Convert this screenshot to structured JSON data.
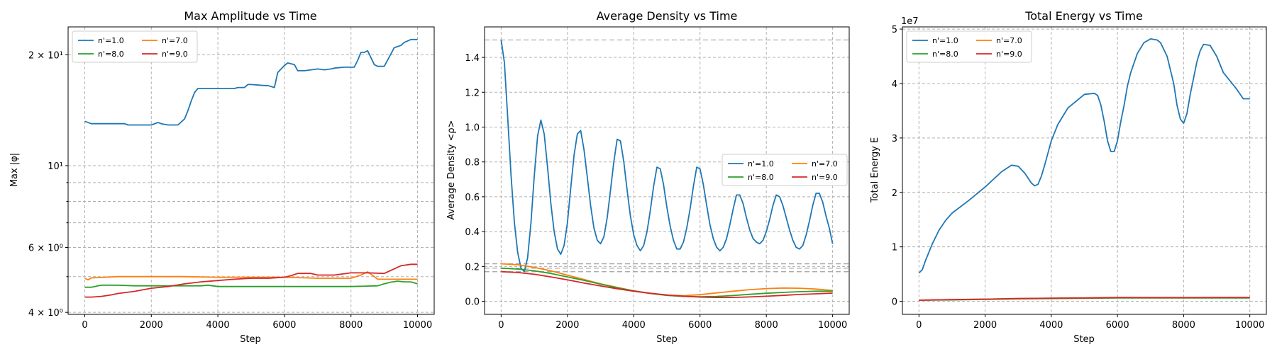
{
  "chart_data": [
    {
      "type": "line",
      "title": "Max Amplitude vs Time",
      "xlabel": "Step",
      "ylabel": "Max |φ|",
      "yscale": "log",
      "xlim": [
        -500,
        10500
      ],
      "ylim": [
        3.95,
        23.8
      ],
      "grid": true,
      "legend": "upper left",
      "legend_ncol": 2,
      "xticks": [
        {
          "v": 0,
          "label": "0"
        },
        {
          "v": 2000,
          "label": "2000"
        },
        {
          "v": 4000,
          "label": "4000"
        },
        {
          "v": 6000,
          "label": "6000"
        },
        {
          "v": 8000,
          "label": "8000"
        },
        {
          "v": 10000,
          "label": "10000"
        }
      ],
      "yticks": [
        {
          "v": 4,
          "label": "4 × 10⁰"
        },
        {
          "v": 6,
          "label": "6 × 10⁰"
        },
        {
          "v": 10,
          "label": "10¹"
        },
        {
          "v": 20,
          "label": "2 × 10¹"
        }
      ],
      "yminor": [
        5,
        7,
        8,
        9
      ],
      "series": [
        {
          "name": "n'=1.0",
          "color": "#1f77b4",
          "x": [
            0,
            200,
            500,
            1000,
            1200,
            1300,
            1500,
            2000,
            2200,
            2300,
            2500,
            2800,
            3000,
            3100,
            3200,
            3300,
            3400,
            3500,
            3600,
            3800,
            4500,
            4600,
            4800,
            4900,
            5000,
            5400,
            5500,
            5700,
            5750,
            5800,
            6000,
            6100,
            6200,
            6300,
            6400,
            6500,
            6600,
            7000,
            7200,
            7400,
            7500,
            7800,
            7900,
            8100,
            8200,
            8300,
            8400,
            8500,
            8700,
            8800,
            8900,
            9000,
            9300,
            9500,
            9600,
            9800,
            10000
          ],
          "y": [
            13.2,
            13.0,
            13.0,
            13.0,
            13.0,
            12.9,
            12.9,
            12.9,
            13.1,
            13.0,
            12.9,
            12.9,
            13.4,
            14.1,
            15.0,
            15.8,
            16.2,
            16.2,
            16.2,
            16.2,
            16.2,
            16.3,
            16.3,
            16.6,
            16.6,
            16.5,
            16.5,
            16.3,
            17.1,
            17.9,
            18.7,
            19.0,
            18.9,
            18.8,
            18.1,
            18.1,
            18.1,
            18.3,
            18.2,
            18.3,
            18.4,
            18.5,
            18.5,
            18.5,
            19.3,
            20.3,
            20.3,
            20.5,
            18.8,
            18.6,
            18.6,
            18.6,
            20.9,
            21.2,
            21.6,
            22.0,
            22.0
          ]
        },
        {
          "name": "n'=7.0",
          "color": "#ff7f0e",
          "x": [
            0,
            100,
            200,
            1000,
            1500,
            2000,
            3000,
            4000,
            5000,
            6000,
            7000,
            8000,
            8300,
            8400,
            8500,
            8700,
            8800,
            8900,
            9000,
            9500,
            10000
          ],
          "y": [
            4.95,
            4.9,
            4.96,
            5.0,
            5.0,
            5.0,
            5.0,
            4.98,
            4.98,
            4.98,
            4.95,
            4.95,
            5.05,
            5.1,
            5.15,
            5.0,
            4.92,
            4.92,
            4.92,
            4.92,
            4.92
          ]
        },
        {
          "name": "n'=8.0",
          "color": "#2ca02c",
          "x": [
            0,
            200,
            500,
            1000,
            1500,
            2000,
            2500,
            3000,
            3500,
            3700,
            4000,
            5000,
            6000,
            7000,
            8000,
            8800,
            9000,
            9200,
            9400,
            9600,
            9800,
            10000
          ],
          "y": [
            4.68,
            4.68,
            4.74,
            4.74,
            4.72,
            4.72,
            4.72,
            4.72,
            4.72,
            4.74,
            4.7,
            4.7,
            4.7,
            4.7,
            4.7,
            4.72,
            4.78,
            4.83,
            4.86,
            4.84,
            4.84,
            4.78
          ]
        },
        {
          "name": "n'=9.0",
          "color": "#d62728",
          "x": [
            0,
            200,
            500,
            800,
            1000,
            1500,
            2000,
            2500,
            3000,
            3500,
            4000,
            4500,
            5000,
            5500,
            6000,
            6200,
            6400,
            6800,
            7000,
            7500,
            8000,
            8500,
            9000,
            9500,
            9800,
            10000
          ],
          "y": [
            4.4,
            4.4,
            4.42,
            4.46,
            4.5,
            4.56,
            4.65,
            4.7,
            4.78,
            4.84,
            4.88,
            4.92,
            4.95,
            4.95,
            4.98,
            5.03,
            5.1,
            5.1,
            5.05,
            5.05,
            5.12,
            5.12,
            5.1,
            5.35,
            5.4,
            5.4
          ]
        }
      ]
    },
    {
      "type": "line",
      "title": "Average Density vs Time",
      "xlabel": "Step",
      "ylabel": "Average Density <ρ>",
      "yscale": "linear",
      "xlim": [
        -500,
        10500
      ],
      "ylim": [
        -0.075,
        1.575
      ],
      "grid": true,
      "legend": "center right",
      "legend_ncol": 2,
      "hlines": [
        1.5,
        0.215,
        0.19,
        0.17
      ],
      "xticks": [
        {
          "v": 0,
          "label": "0"
        },
        {
          "v": 2000,
          "label": "2000"
        },
        {
          "v": 4000,
          "label": "4000"
        },
        {
          "v": 6000,
          "label": "6000"
        },
        {
          "v": 8000,
          "label": "8000"
        },
        {
          "v": 10000,
          "label": "10000"
        }
      ],
      "yticks": [
        {
          "v": 0.0,
          "label": "0.0"
        },
        {
          "v": 0.2,
          "label": "0.2"
        },
        {
          "v": 0.4,
          "label": "0.4"
        },
        {
          "v": 0.6,
          "label": "0.6"
        },
        {
          "v": 0.8,
          "label": "0.8"
        },
        {
          "v": 1.0,
          "label": "1.0"
        },
        {
          "v": 1.2,
          "label": "1.2"
        },
        {
          "v": 1.4,
          "label": "1.4"
        }
      ],
      "series": [
        {
          "name": "n'=1.0",
          "color": "#1f77b4",
          "x": [
            0,
            100,
            200,
            300,
            400,
            500,
            600,
            700,
            800,
            900,
            1000,
            1100,
            1200,
            1300,
            1400,
            1500,
            1600,
            1700,
            1800,
            1900,
            2000,
            2100,
            2200,
            2300,
            2400,
            2500,
            2600,
            2700,
            2800,
            2900,
            3000,
            3100,
            3200,
            3300,
            3400,
            3500,
            3600,
            3700,
            3800,
            3900,
            4000,
            4100,
            4200,
            4300,
            4400,
            4500,
            4600,
            4700,
            4800,
            4900,
            5000,
            5100,
            5200,
            5300,
            5400,
            5500,
            5600,
            5700,
            5800,
            5900,
            6000,
            6100,
            6200,
            6300,
            6400,
            6500,
            6600,
            6700,
            6800,
            6900,
            7000,
            7100,
            7200,
            7300,
            7400,
            7500,
            7600,
            7700,
            7800,
            7900,
            8000,
            8100,
            8200,
            8300,
            8400,
            8500,
            8600,
            8700,
            8800,
            8900,
            9000,
            9100,
            9200,
            9300,
            9400,
            9500,
            9600,
            9700,
            9800,
            9900,
            10000
          ],
          "y": [
            1.5,
            1.37,
            1.05,
            0.72,
            0.45,
            0.28,
            0.19,
            0.17,
            0.25,
            0.45,
            0.72,
            0.95,
            1.04,
            0.96,
            0.77,
            0.56,
            0.4,
            0.3,
            0.27,
            0.32,
            0.45,
            0.65,
            0.84,
            0.96,
            0.98,
            0.87,
            0.71,
            0.55,
            0.42,
            0.35,
            0.33,
            0.37,
            0.48,
            0.64,
            0.8,
            0.93,
            0.92,
            0.8,
            0.64,
            0.49,
            0.38,
            0.32,
            0.29,
            0.32,
            0.4,
            0.52,
            0.66,
            0.77,
            0.76,
            0.67,
            0.54,
            0.43,
            0.35,
            0.3,
            0.3,
            0.34,
            0.42,
            0.53,
            0.66,
            0.77,
            0.76,
            0.67,
            0.55,
            0.44,
            0.36,
            0.31,
            0.29,
            0.31,
            0.36,
            0.44,
            0.53,
            0.61,
            0.61,
            0.56,
            0.48,
            0.41,
            0.36,
            0.34,
            0.33,
            0.35,
            0.4,
            0.47,
            0.55,
            0.61,
            0.6,
            0.55,
            0.48,
            0.41,
            0.35,
            0.31,
            0.3,
            0.32,
            0.38,
            0.46,
            0.55,
            0.62,
            0.62,
            0.57,
            0.49,
            0.42,
            0.33
          ]
        },
        {
          "name": "n'=7.0",
          "color": "#ff7f0e",
          "x": [
            0,
            500,
            1000,
            1500,
            2000,
            2500,
            3000,
            3500,
            4000,
            4500,
            5000,
            5500,
            6000,
            6500,
            7000,
            7500,
            8000,
            8500,
            9000,
            9500,
            10000
          ],
          "y": [
            0.215,
            0.21,
            0.195,
            0.175,
            0.15,
            0.125,
            0.1,
            0.08,
            0.06,
            0.045,
            0.035,
            0.032,
            0.038,
            0.048,
            0.058,
            0.067,
            0.073,
            0.076,
            0.075,
            0.07,
            0.062
          ]
        },
        {
          "name": "n'=8.0",
          "color": "#2ca02c",
          "x": [
            0,
            500,
            1000,
            1500,
            2000,
            2500,
            3000,
            3500,
            4000,
            4500,
            5000,
            5500,
            6000,
            6500,
            7000,
            7500,
            8000,
            8500,
            9000,
            9500,
            10000
          ],
          "y": [
            0.19,
            0.185,
            0.175,
            0.16,
            0.14,
            0.12,
            0.098,
            0.078,
            0.06,
            0.045,
            0.034,
            0.028,
            0.026,
            0.028,
            0.033,
            0.04,
            0.046,
            0.051,
            0.055,
            0.058,
            0.058
          ]
        },
        {
          "name": "n'=9.0",
          "color": "#d62728",
          "x": [
            0,
            500,
            1000,
            1500,
            2000,
            2500,
            3000,
            3500,
            4000,
            4500,
            5000,
            5500,
            6000,
            6500,
            7000,
            7500,
            8000,
            8500,
            9000,
            9500,
            10000
          ],
          "y": [
            0.17,
            0.165,
            0.155,
            0.14,
            0.123,
            0.105,
            0.088,
            0.072,
            0.058,
            0.046,
            0.036,
            0.029,
            0.024,
            0.022,
            0.022,
            0.025,
            0.029,
            0.034,
            0.039,
            0.043,
            0.047
          ]
        }
      ]
    },
    {
      "type": "line",
      "title": "Total Energy vs Time",
      "xlabel": "Step",
      "ylabel": "Total Energy E",
      "yscale": "linear",
      "offset_label": "1e7",
      "ylim": [
        -0.24,
        5.04
      ],
      "xlim": [
        -500,
        10500
      ],
      "grid": true,
      "legend": "upper left",
      "legend_ncol": 2,
      "xticks": [
        {
          "v": 0,
          "label": "0"
        },
        {
          "v": 2000,
          "label": "2000"
        },
        {
          "v": 4000,
          "label": "4000"
        },
        {
          "v": 6000,
          "label": "6000"
        },
        {
          "v": 8000,
          "label": "8000"
        },
        {
          "v": 10000,
          "label": "10000"
        }
      ],
      "yticks": [
        {
          "v": 0,
          "label": "0"
        },
        {
          "v": 1,
          "label": "1"
        },
        {
          "v": 2,
          "label": "2"
        },
        {
          "v": 3,
          "label": "3"
        },
        {
          "v": 4,
          "label": "4"
        },
        {
          "v": 5,
          "label": "5"
        }
      ],
      "series": [
        {
          "name": "n'=1.0",
          "color": "#1f77b4",
          "x": [
            0,
            100,
            200,
            400,
            600,
            800,
            1000,
            1500,
            2000,
            2500,
            2800,
            3000,
            3200,
            3400,
            3500,
            3600,
            3700,
            3800,
            4000,
            4200,
            4500,
            5000,
            5300,
            5400,
            5500,
            5600,
            5700,
            5800,
            5900,
            6000,
            6100,
            6200,
            6300,
            6400,
            6600,
            6800,
            7000,
            7200,
            7300,
            7500,
            7700,
            7800,
            7900,
            8000,
            8100,
            8200,
            8300,
            8400,
            8500,
            8600,
            8800,
            9000,
            9100,
            9200,
            9400,
            9600,
            9800,
            10000
          ],
          "y": [
            0.52,
            0.58,
            0.75,
            1.05,
            1.3,
            1.48,
            1.62,
            1.85,
            2.1,
            2.38,
            2.5,
            2.48,
            2.35,
            2.17,
            2.12,
            2.15,
            2.3,
            2.5,
            2.95,
            3.25,
            3.55,
            3.8,
            3.82,
            3.78,
            3.6,
            3.3,
            2.95,
            2.75,
            2.75,
            2.95,
            3.3,
            3.6,
            3.95,
            4.2,
            4.55,
            4.75,
            4.82,
            4.8,
            4.75,
            4.5,
            4.0,
            3.6,
            3.35,
            3.27,
            3.45,
            3.8,
            4.1,
            4.4,
            4.6,
            4.72,
            4.7,
            4.5,
            4.35,
            4.2,
            4.05,
            3.9,
            3.72,
            3.72
          ]
        },
        {
          "name": "n'=7.0",
          "color": "#ff7f0e",
          "x": [
            0,
            1000,
            2000,
            3000,
            4000,
            5000,
            6000,
            7000,
            8000,
            9000,
            10000
          ],
          "y": [
            0.02,
            0.03,
            0.04,
            0.05,
            0.055,
            0.06,
            0.065,
            0.065,
            0.065,
            0.065,
            0.065
          ]
        },
        {
          "name": "n'=8.0",
          "color": "#2ca02c",
          "x": [
            0,
            1000,
            2000,
            3000,
            4000,
            5000,
            6000,
            7000,
            8000,
            9000,
            10000
          ],
          "y": [
            0.02,
            0.025,
            0.035,
            0.045,
            0.05,
            0.055,
            0.06,
            0.06,
            0.06,
            0.06,
            0.06
          ]
        },
        {
          "name": "n'=9.0",
          "color": "#d62728",
          "x": [
            0,
            1000,
            2000,
            3000,
            4000,
            5000,
            6000,
            7000,
            8000,
            9000,
            10000
          ],
          "y": [
            0.02,
            0.03,
            0.04,
            0.05,
            0.058,
            0.062,
            0.07,
            0.068,
            0.068,
            0.07,
            0.07
          ]
        }
      ]
    }
  ]
}
